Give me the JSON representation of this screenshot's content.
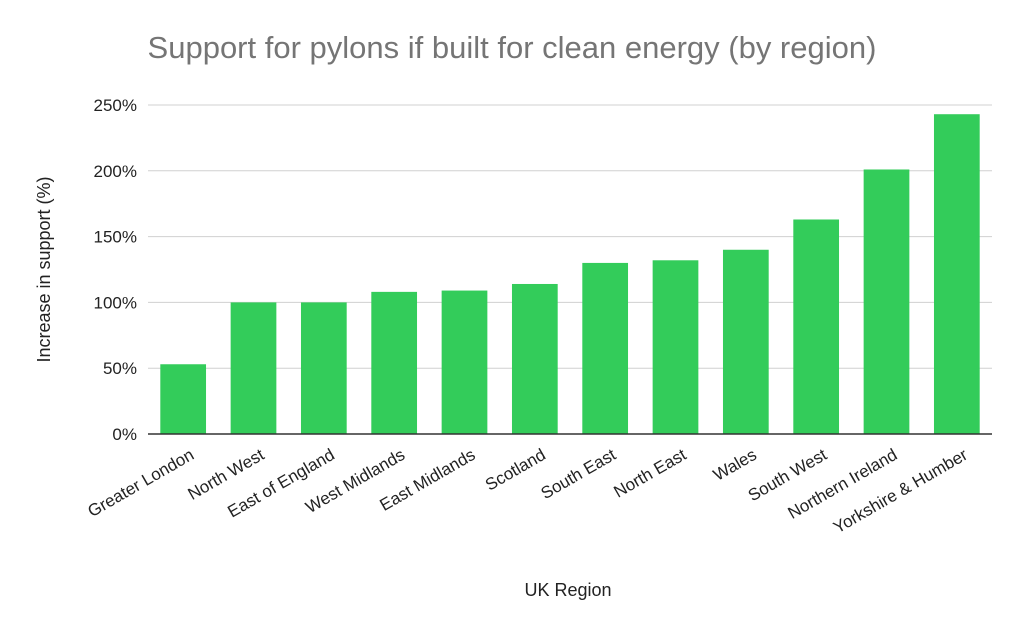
{
  "chart_data": {
    "type": "bar",
    "title": "Support for pylons if built for clean energy (by region)",
    "xlabel": "UK Region",
    "ylabel": "Increase in support (%)",
    "categories": [
      "Greater London",
      "North West",
      "East of England",
      "West Midlands",
      "East Midlands",
      "Scotland",
      "South East",
      "North East",
      "Wales",
      "South West",
      "Northern Ireland",
      "Yorkshire & Humber"
    ],
    "values": [
      53,
      100,
      100,
      108,
      109,
      114,
      130,
      132,
      140,
      163,
      201,
      243
    ],
    "ylim": [
      0,
      250
    ],
    "yticks": [
      "0%",
      "50%",
      "100%",
      "150%",
      "200%",
      "250%"
    ],
    "ytick_values": [
      0,
      50,
      100,
      150,
      200,
      250
    ],
    "grid": true,
    "legend": "none",
    "bar_color": "#33cc5a"
  }
}
